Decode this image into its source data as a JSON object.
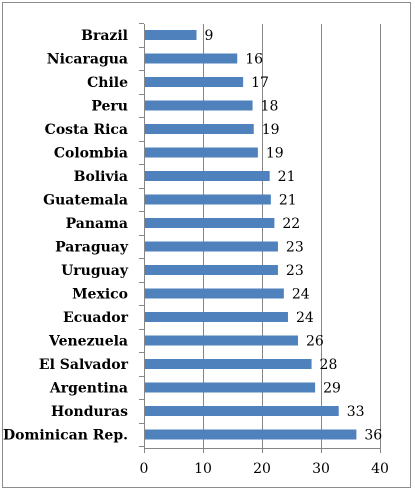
{
  "chart_data": {
    "type": "bar",
    "orientation": "horizontal",
    "title": "",
    "xlabel": "",
    "ylabel": "",
    "categories": [
      "Brazil",
      "Nicaragua",
      "Chile",
      "Peru",
      "Costa Rica",
      "Colombia",
      "Bolivia",
      "Guatemala",
      "Panama",
      "Paraguay",
      "Uruguay",
      "Mexico",
      "Ecuador",
      "Venezuela",
      "El Salvador",
      "Argentina",
      "Honduras",
      "Dominican Rep."
    ],
    "values": [
      8.9,
      15.8,
      16.8,
      18.4,
      18.6,
      19.3,
      21.3,
      21.5,
      22.1,
      22.7,
      22.7,
      23.7,
      24.4,
      26.1,
      28.4,
      29.0,
      33.0,
      36.0
    ],
    "value_labels": [
      "9",
      "16",
      "17",
      "18",
      "19",
      "19",
      "21",
      "21",
      "22",
      "23",
      "23",
      "24",
      "24",
      "26",
      "28",
      "29",
      "33",
      "36"
    ],
    "xlim": [
      0,
      40
    ],
    "x_ticks": [
      "0",
      "10",
      "20",
      "30",
      "40"
    ],
    "x_tick_values": [
      0,
      10,
      20,
      30,
      40
    ],
    "grid": "vertical",
    "legend": "none",
    "bar_color": "#4f81bd",
    "grid_color": "#868686"
  }
}
